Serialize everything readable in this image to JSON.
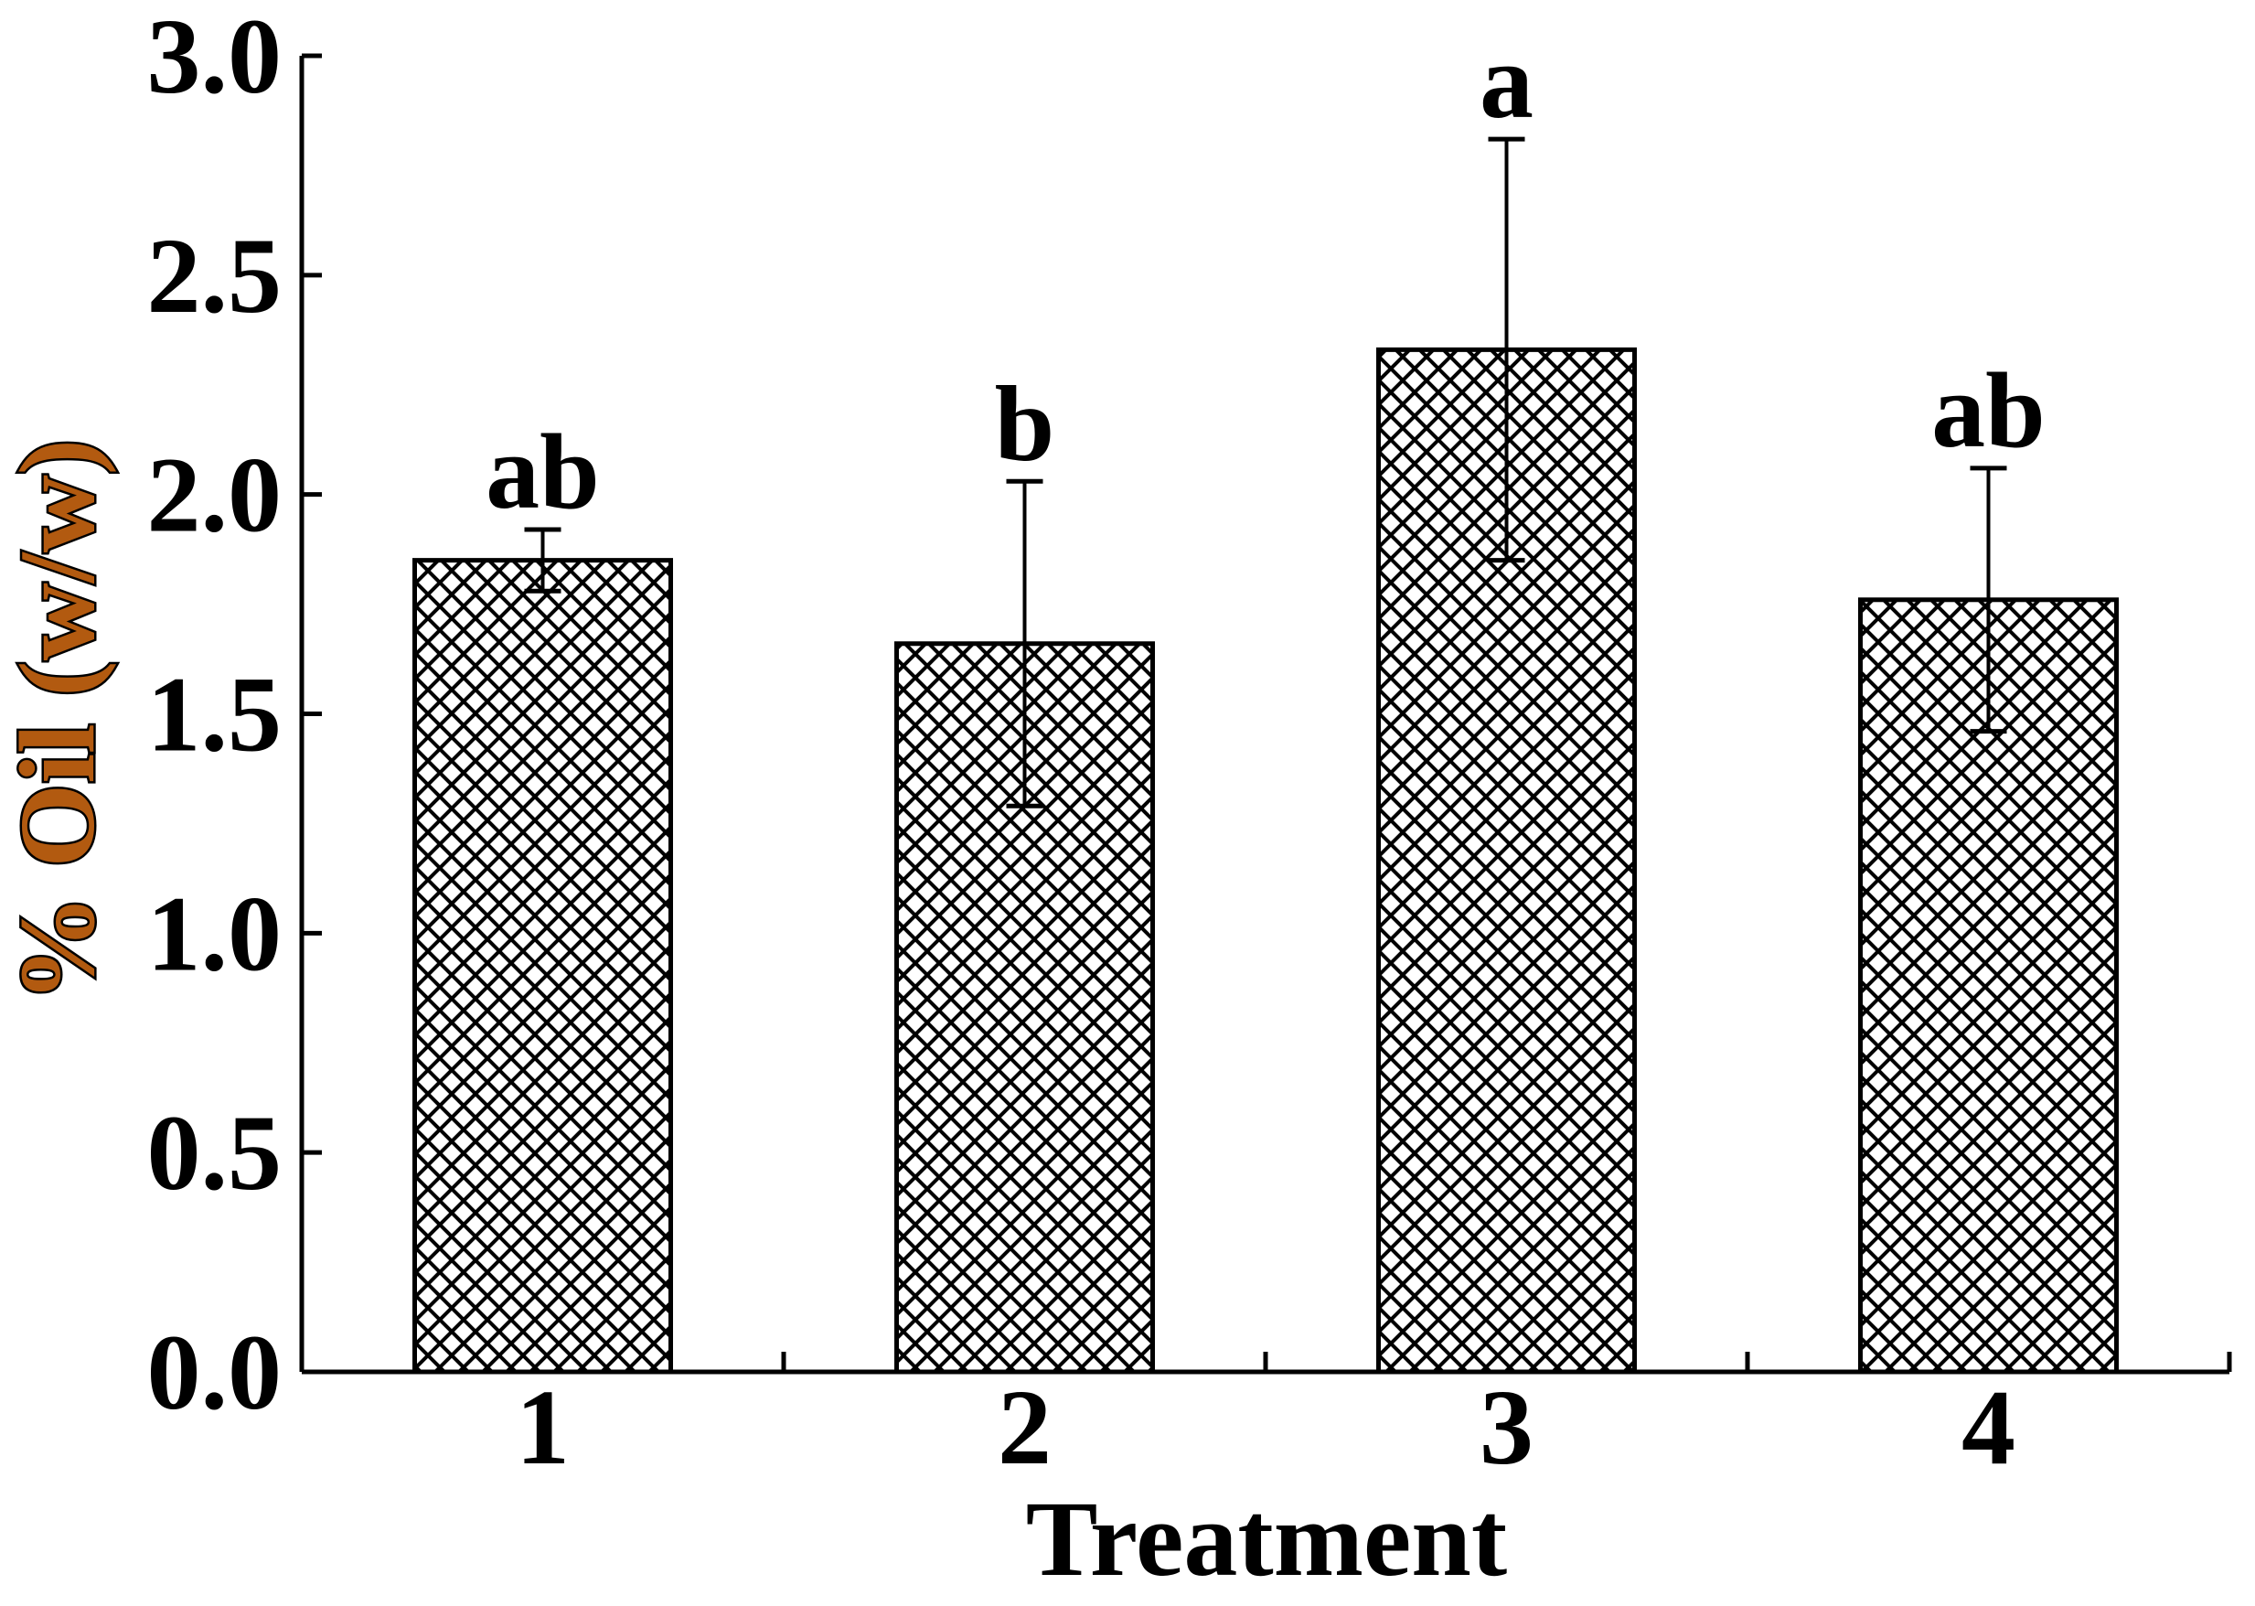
{
  "chart_data": {
    "type": "bar",
    "title": "",
    "xlabel": "Treatment",
    "ylabel": "% Oil (w/w)",
    "categories": [
      "1",
      "2",
      "3",
      "4"
    ],
    "values": [
      1.85,
      1.66,
      2.33,
      1.76
    ],
    "error_bars": [
      0.07,
      0.37,
      0.48,
      0.3
    ],
    "significance_letters": [
      "ab",
      "b",
      "a",
      "ab"
    ],
    "ylim": [
      0.0,
      3.0
    ],
    "yticks": [
      "0.0",
      "0.5",
      "1.0",
      "1.5",
      "2.0",
      "2.5",
      "3.0"
    ],
    "grid": false,
    "legend": "none",
    "bar_pattern": "crosshatch",
    "colors": {
      "bar_fill": "#ffffff",
      "hatch": "#000000",
      "axis": "#000000",
      "text": "#000000",
      "ylabel_text": "#000000",
      "ylabel_glyph_fill": "#b25a10"
    }
  }
}
